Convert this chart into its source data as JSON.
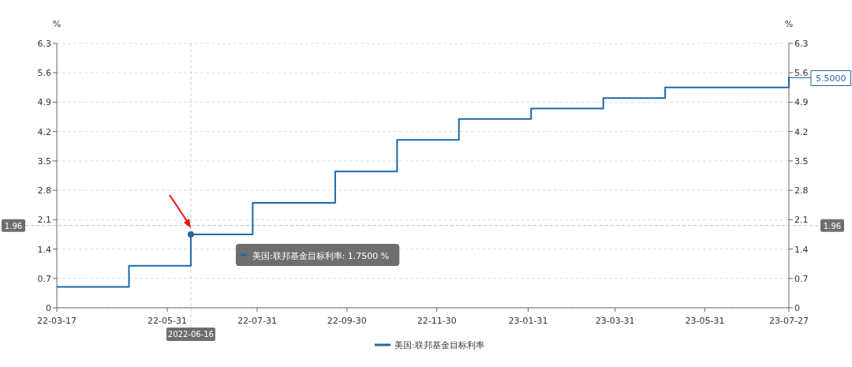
{
  "chart_data": {
    "type": "step",
    "x": [
      "2022-03-17",
      "2022-05-05",
      "2022-06-16",
      "2022-07-28",
      "2022-09-22",
      "2022-11-03",
      "2022-12-15",
      "2023-02-02",
      "2023-03-23",
      "2023-05-04",
      "2023-07-27"
    ],
    "series": [
      {
        "name": "美国:联邦基金目标利率",
        "color": "#1f67a8",
        "values": [
          0.5,
          1.0,
          1.75,
          2.5,
          3.25,
          4.0,
          4.5,
          4.75,
          5.0,
          5.25,
          5.5
        ]
      }
    ],
    "xlim": [
      "2022-03-17",
      "2023-07-27"
    ],
    "xticks": [
      {
        "value": "2022-03-17",
        "label": "22-03-17"
      },
      {
        "value": "2022-05-31",
        "label": "22-05-31"
      },
      {
        "value": "2022-07-31",
        "label": "22-07-31"
      },
      {
        "value": "2022-09-30",
        "label": "22-09-30"
      },
      {
        "value": "2022-11-30",
        "label": "22-11-30"
      },
      {
        "value": "2023-01-31",
        "label": "23-01-31"
      },
      {
        "value": "2023-03-31",
        "label": "23-03-31"
      },
      {
        "value": "2023-05-31",
        "label": "23-05-31"
      },
      {
        "value": "2023-07-27",
        "label": "23-07-27"
      }
    ],
    "ylim": [
      0,
      6.3
    ],
    "yticks": [
      0,
      0.7,
      1.4,
      2.1,
      2.8,
      3.5,
      4.2,
      4.9,
      5.6,
      6.3
    ],
    "y2lim": [
      0,
      6.3
    ],
    "y2ticks": [
      0,
      0.7,
      1.4,
      2.1,
      2.8,
      3.5,
      4.2,
      4.9,
      5.6,
      6.3
    ],
    "ylabel": "%",
    "y2label": "%",
    "grid": "y",
    "legend": "bottom",
    "ref_lines": [
      {
        "axis": "y",
        "value": 1.96,
        "label": "1.96"
      },
      {
        "axis": "x",
        "value": "2022-06-16",
        "label": "2022-06-16"
      }
    ],
    "annotations": [
      "美国:联邦基金目标利率: 1.7500  %",
      {
        "text": "5.5000",
        "x": "2023-07-27",
        "y": 5.5
      }
    ]
  }
}
